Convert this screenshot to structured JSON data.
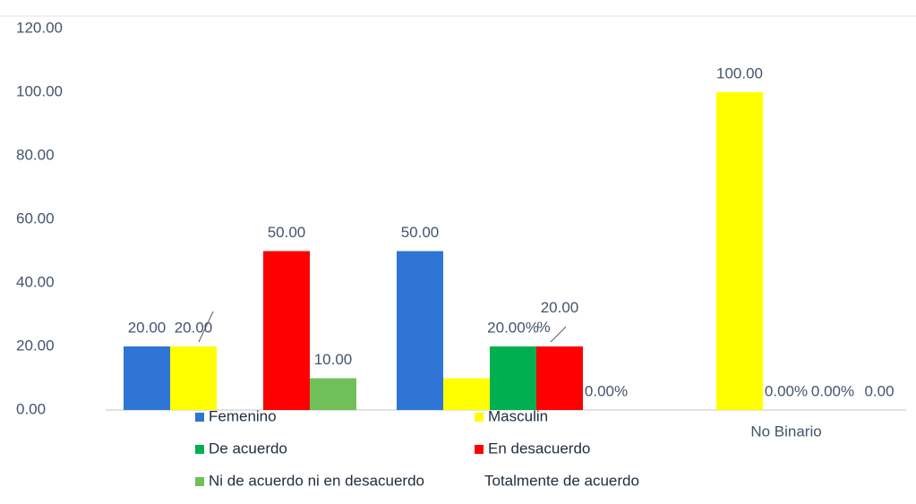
{
  "chart_data": {
    "type": "bar",
    "categories": [
      null,
      null,
      "No Binario"
    ],
    "series": [
      {
        "name": "Femenino",
        "color": "#2e75d6",
        "values": [
          20,
          50,
          null
        ],
        "value_labels": [
          "20.00",
          "50.00",
          null
        ]
      },
      {
        "name": "Masculin",
        "color": "#ffff00",
        "values": [
          20,
          10,
          100
        ],
        "value_labels": [
          "20.00",
          null,
          "100.00"
        ]
      },
      {
        "name": "De acuerdo",
        "color": "#00b050",
        "values": [
          null,
          20,
          0
        ],
        "value_labels": [
          null,
          "20.00%",
          "0.00%"
        ]
      },
      {
        "name": "En desacuerdo",
        "color": "#ff0000",
        "values": [
          50,
          20,
          0
        ],
        "value_labels": [
          "50.00",
          "20.00\n%",
          "0.00%"
        ]
      },
      {
        "name": "Ni de acuerdo ni en desacuerdo",
        "color": "#70c05a",
        "values": [
          10,
          0,
          0
        ],
        "value_labels": [
          "10.00",
          "0.00%",
          "0.00"
        ]
      }
    ],
    "legend_extra": "Totalmente de acuerdo",
    "ylim": [
      0,
      120
    ],
    "yticks": [
      {
        "value": 0,
        "label": "0.00"
      },
      {
        "value": 20,
        "label": "20.00"
      },
      {
        "value": 40,
        "label": "40.00"
      },
      {
        "value": 60,
        "label": "60.00"
      },
      {
        "value": 80,
        "label": "80.00"
      },
      {
        "value": 100,
        "label": "100.00"
      },
      {
        "value": 120,
        "label": "120.00"
      }
    ],
    "grid": false
  }
}
